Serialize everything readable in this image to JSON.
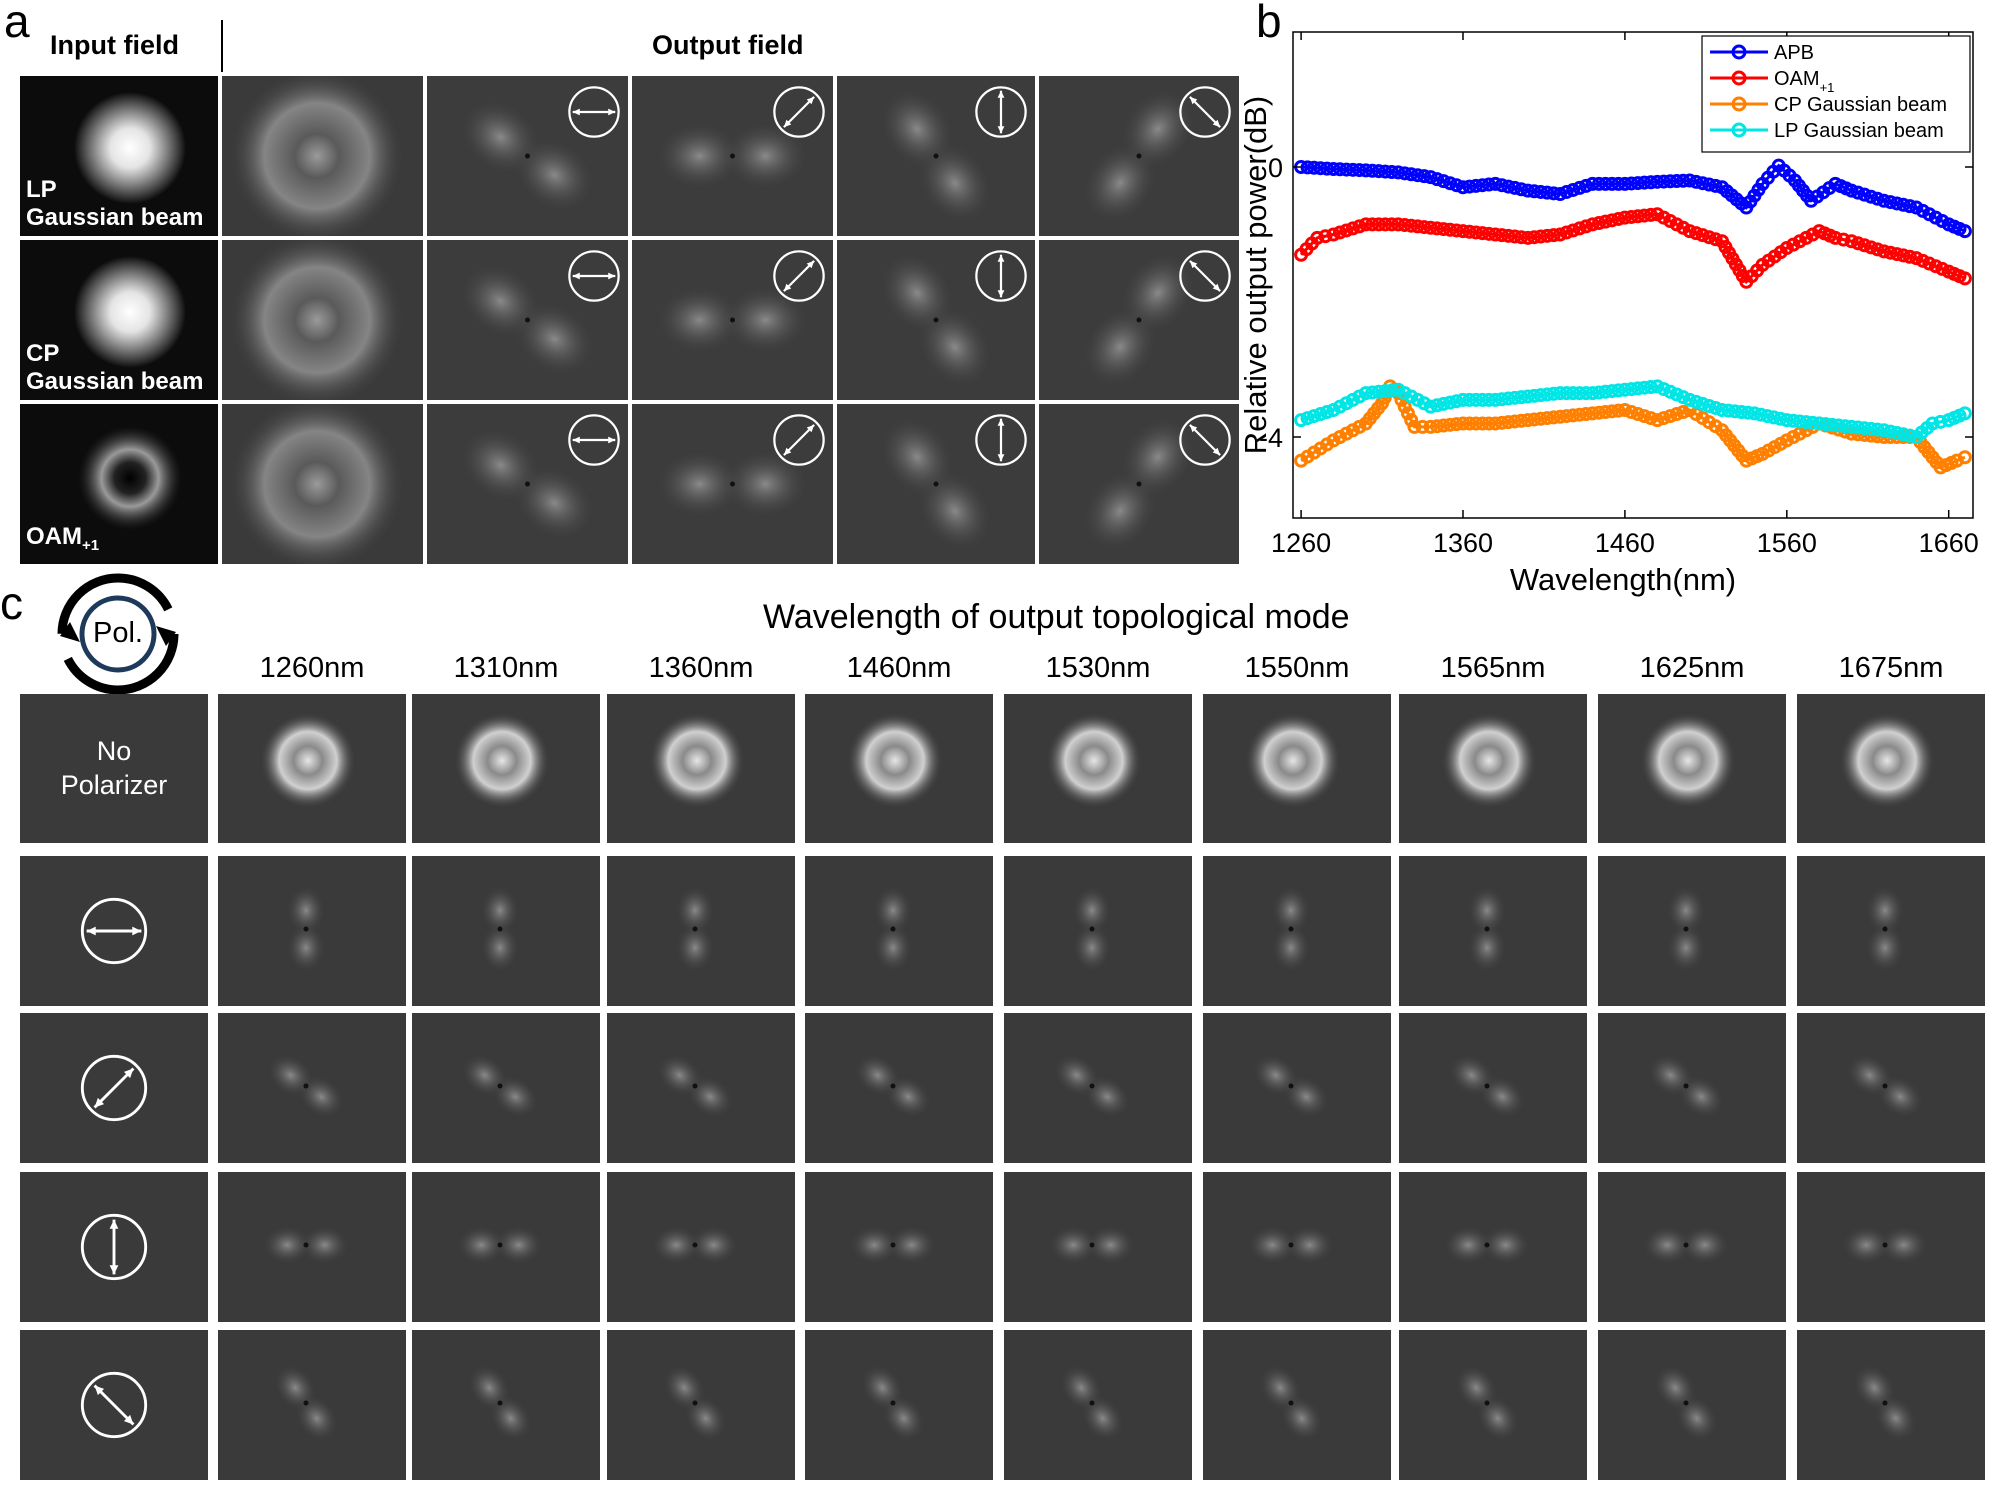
{
  "panel_a": {
    "letter": "a",
    "input_header": "Input field",
    "output_header": "Output field",
    "rows": [
      {
        "label_line1": "LP",
        "label_line2": "Gaussian beam",
        "sub": ""
      },
      {
        "label_line1": "CP",
        "label_line2": "Gaussian beam",
        "sub": ""
      },
      {
        "label_line1": "",
        "label_line2": "OAM",
        "sub": "+1"
      }
    ],
    "polarizer_icons": [
      "horizontal-arrow-icon",
      "diagonal-45-arrow-icon",
      "vertical-arrow-icon",
      "diagonal-135-arrow-icon"
    ]
  },
  "panel_b": {
    "letter": "b",
    "legend_sub": "+1"
  },
  "chart_data": {
    "type": "line",
    "xlabel": "Wavelength(nm)",
    "ylabel": "Relative output power(dB)",
    "xlim": [
      1255,
      1675
    ],
    "ylim": [
      -5.2,
      2.0
    ],
    "xticks": [
      1260,
      1360,
      1460,
      1560,
      1660
    ],
    "yticks": [
      0,
      -4
    ],
    "grid": false,
    "legend_position": "top-right",
    "series": [
      {
        "name": "APB",
        "color": "#0000ff",
        "x": [
          1260,
          1280,
          1300,
          1320,
          1340,
          1360,
          1380,
          1400,
          1420,
          1440,
          1460,
          1480,
          1500,
          1520,
          1535,
          1545,
          1555,
          1565,
          1575,
          1590,
          1600,
          1620,
          1640,
          1660,
          1670
        ],
        "y": [
          0,
          -0.03,
          -0.05,
          -0.08,
          -0.15,
          -0.3,
          -0.25,
          -0.35,
          -0.4,
          -0.25,
          -0.25,
          -0.22,
          -0.2,
          -0.3,
          -0.6,
          -0.25,
          0.02,
          -0.2,
          -0.5,
          -0.25,
          -0.35,
          -0.5,
          -0.6,
          -0.85,
          -0.95
        ]
      },
      {
        "name": "OAM",
        "name_sub": "+1",
        "color": "#ff0000",
        "x": [
          1260,
          1270,
          1280,
          1300,
          1320,
          1340,
          1360,
          1380,
          1400,
          1420,
          1440,
          1460,
          1480,
          1500,
          1520,
          1535,
          1545,
          1560,
          1580,
          1590,
          1600,
          1620,
          1640,
          1660,
          1670
        ],
        "y": [
          -1.3,
          -1.05,
          -1.0,
          -0.85,
          -0.85,
          -0.9,
          -0.95,
          -1.0,
          -1.05,
          -1.0,
          -0.85,
          -0.75,
          -0.7,
          -0.95,
          -1.1,
          -1.7,
          -1.45,
          -1.2,
          -0.95,
          -1.05,
          -1.1,
          -1.25,
          -1.35,
          -1.55,
          -1.65
        ]
      },
      {
        "name": "CP Gaussian beam",
        "color": "#ff8000",
        "x": [
          1260,
          1280,
          1300,
          1310,
          1315,
          1320,
          1330,
          1340,
          1360,
          1380,
          1400,
          1420,
          1440,
          1460,
          1480,
          1500,
          1520,
          1535,
          1545,
          1560,
          1580,
          1600,
          1620,
          1640,
          1655,
          1665,
          1670
        ],
        "y": [
          -4.35,
          -4.05,
          -3.8,
          -3.5,
          -3.25,
          -3.35,
          -3.85,
          -3.85,
          -3.8,
          -3.8,
          -3.75,
          -3.7,
          -3.65,
          -3.6,
          -3.75,
          -3.6,
          -3.9,
          -4.35,
          -4.25,
          -4.05,
          -3.8,
          -3.95,
          -4.0,
          -4.0,
          -4.45,
          -4.35,
          -4.3
        ]
      },
      {
        "name": "LP Gaussian beam",
        "color": "#00e5e5",
        "x": [
          1260,
          1280,
          1300,
          1320,
          1340,
          1360,
          1380,
          1400,
          1420,
          1440,
          1460,
          1480,
          1500,
          1520,
          1540,
          1560,
          1580,
          1600,
          1620,
          1640,
          1650,
          1660,
          1670
        ],
        "y": [
          -3.75,
          -3.6,
          -3.35,
          -3.3,
          -3.55,
          -3.45,
          -3.45,
          -3.4,
          -3.35,
          -3.35,
          -3.3,
          -3.25,
          -3.45,
          -3.6,
          -3.65,
          -3.75,
          -3.8,
          -3.85,
          -3.9,
          -4.0,
          -3.8,
          -3.75,
          -3.65
        ]
      }
    ]
  },
  "panel_c": {
    "letter": "c",
    "pol_label": "Pol.",
    "title": "Wavelength of output topological mode",
    "wavelengths": [
      "1260nm",
      "1310nm",
      "1360nm",
      "1460nm",
      "1530nm",
      "1550nm",
      "1565nm",
      "1625nm",
      "1675nm"
    ],
    "no_polarizer_line1": "No",
    "no_polarizer_line2": "Polarizer",
    "row_icons": [
      "no-polarizer",
      "horizontal-arrow-icon",
      "diagonal-45-arrow-icon",
      "vertical-arrow-icon",
      "diagonal-135-arrow-icon"
    ]
  }
}
